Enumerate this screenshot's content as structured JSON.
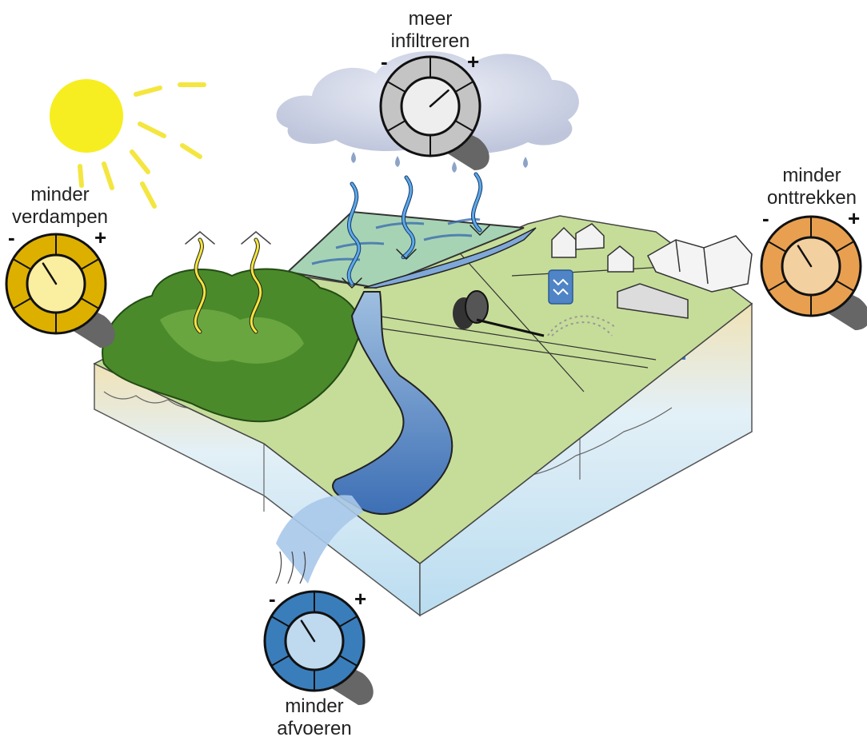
{
  "knobs": [
    {
      "id": "infiltreren",
      "line1": "meer",
      "line2": "infiltreren",
      "minus": "-",
      "plus": "+",
      "ring": "#c4c4c4",
      "face": "#eeeeee",
      "level": 0.68
    },
    {
      "id": "verdampen",
      "line1": "minder",
      "line2": "verdampen",
      "minus": "-",
      "plus": "+",
      "ring": "#ddb000",
      "face": "#faeea0",
      "level": 0.38
    },
    {
      "id": "onttrekken",
      "line1": "minder",
      "line2": "onttrekken",
      "minus": "-",
      "plus": "+",
      "ring": "#e8a050",
      "face": "#f3d0a0",
      "level": 0.38
    },
    {
      "id": "afvoeren",
      "line1": "minder",
      "line2": "afvoeren",
      "minus": "-",
      "plus": "+",
      "ring": "#3a7dbb",
      "face": "#bfd9ef",
      "level": 0.38
    }
  ],
  "colors": {
    "sun": "#f6ee20",
    "cloud": "#c9cfe0",
    "forest": "#4a8a2a",
    "grass": "#b8d68a",
    "river": "#4f7fc0",
    "groundwater": "#d8ecf7",
    "sand": "#ecd9a6"
  },
  "icons": [
    "sun-icon",
    "cloud-icon",
    "rain-drop-icon",
    "pump-icon",
    "sprinkler-icon",
    "house-icon",
    "greenhouse-icon",
    "water-board-icon"
  ]
}
